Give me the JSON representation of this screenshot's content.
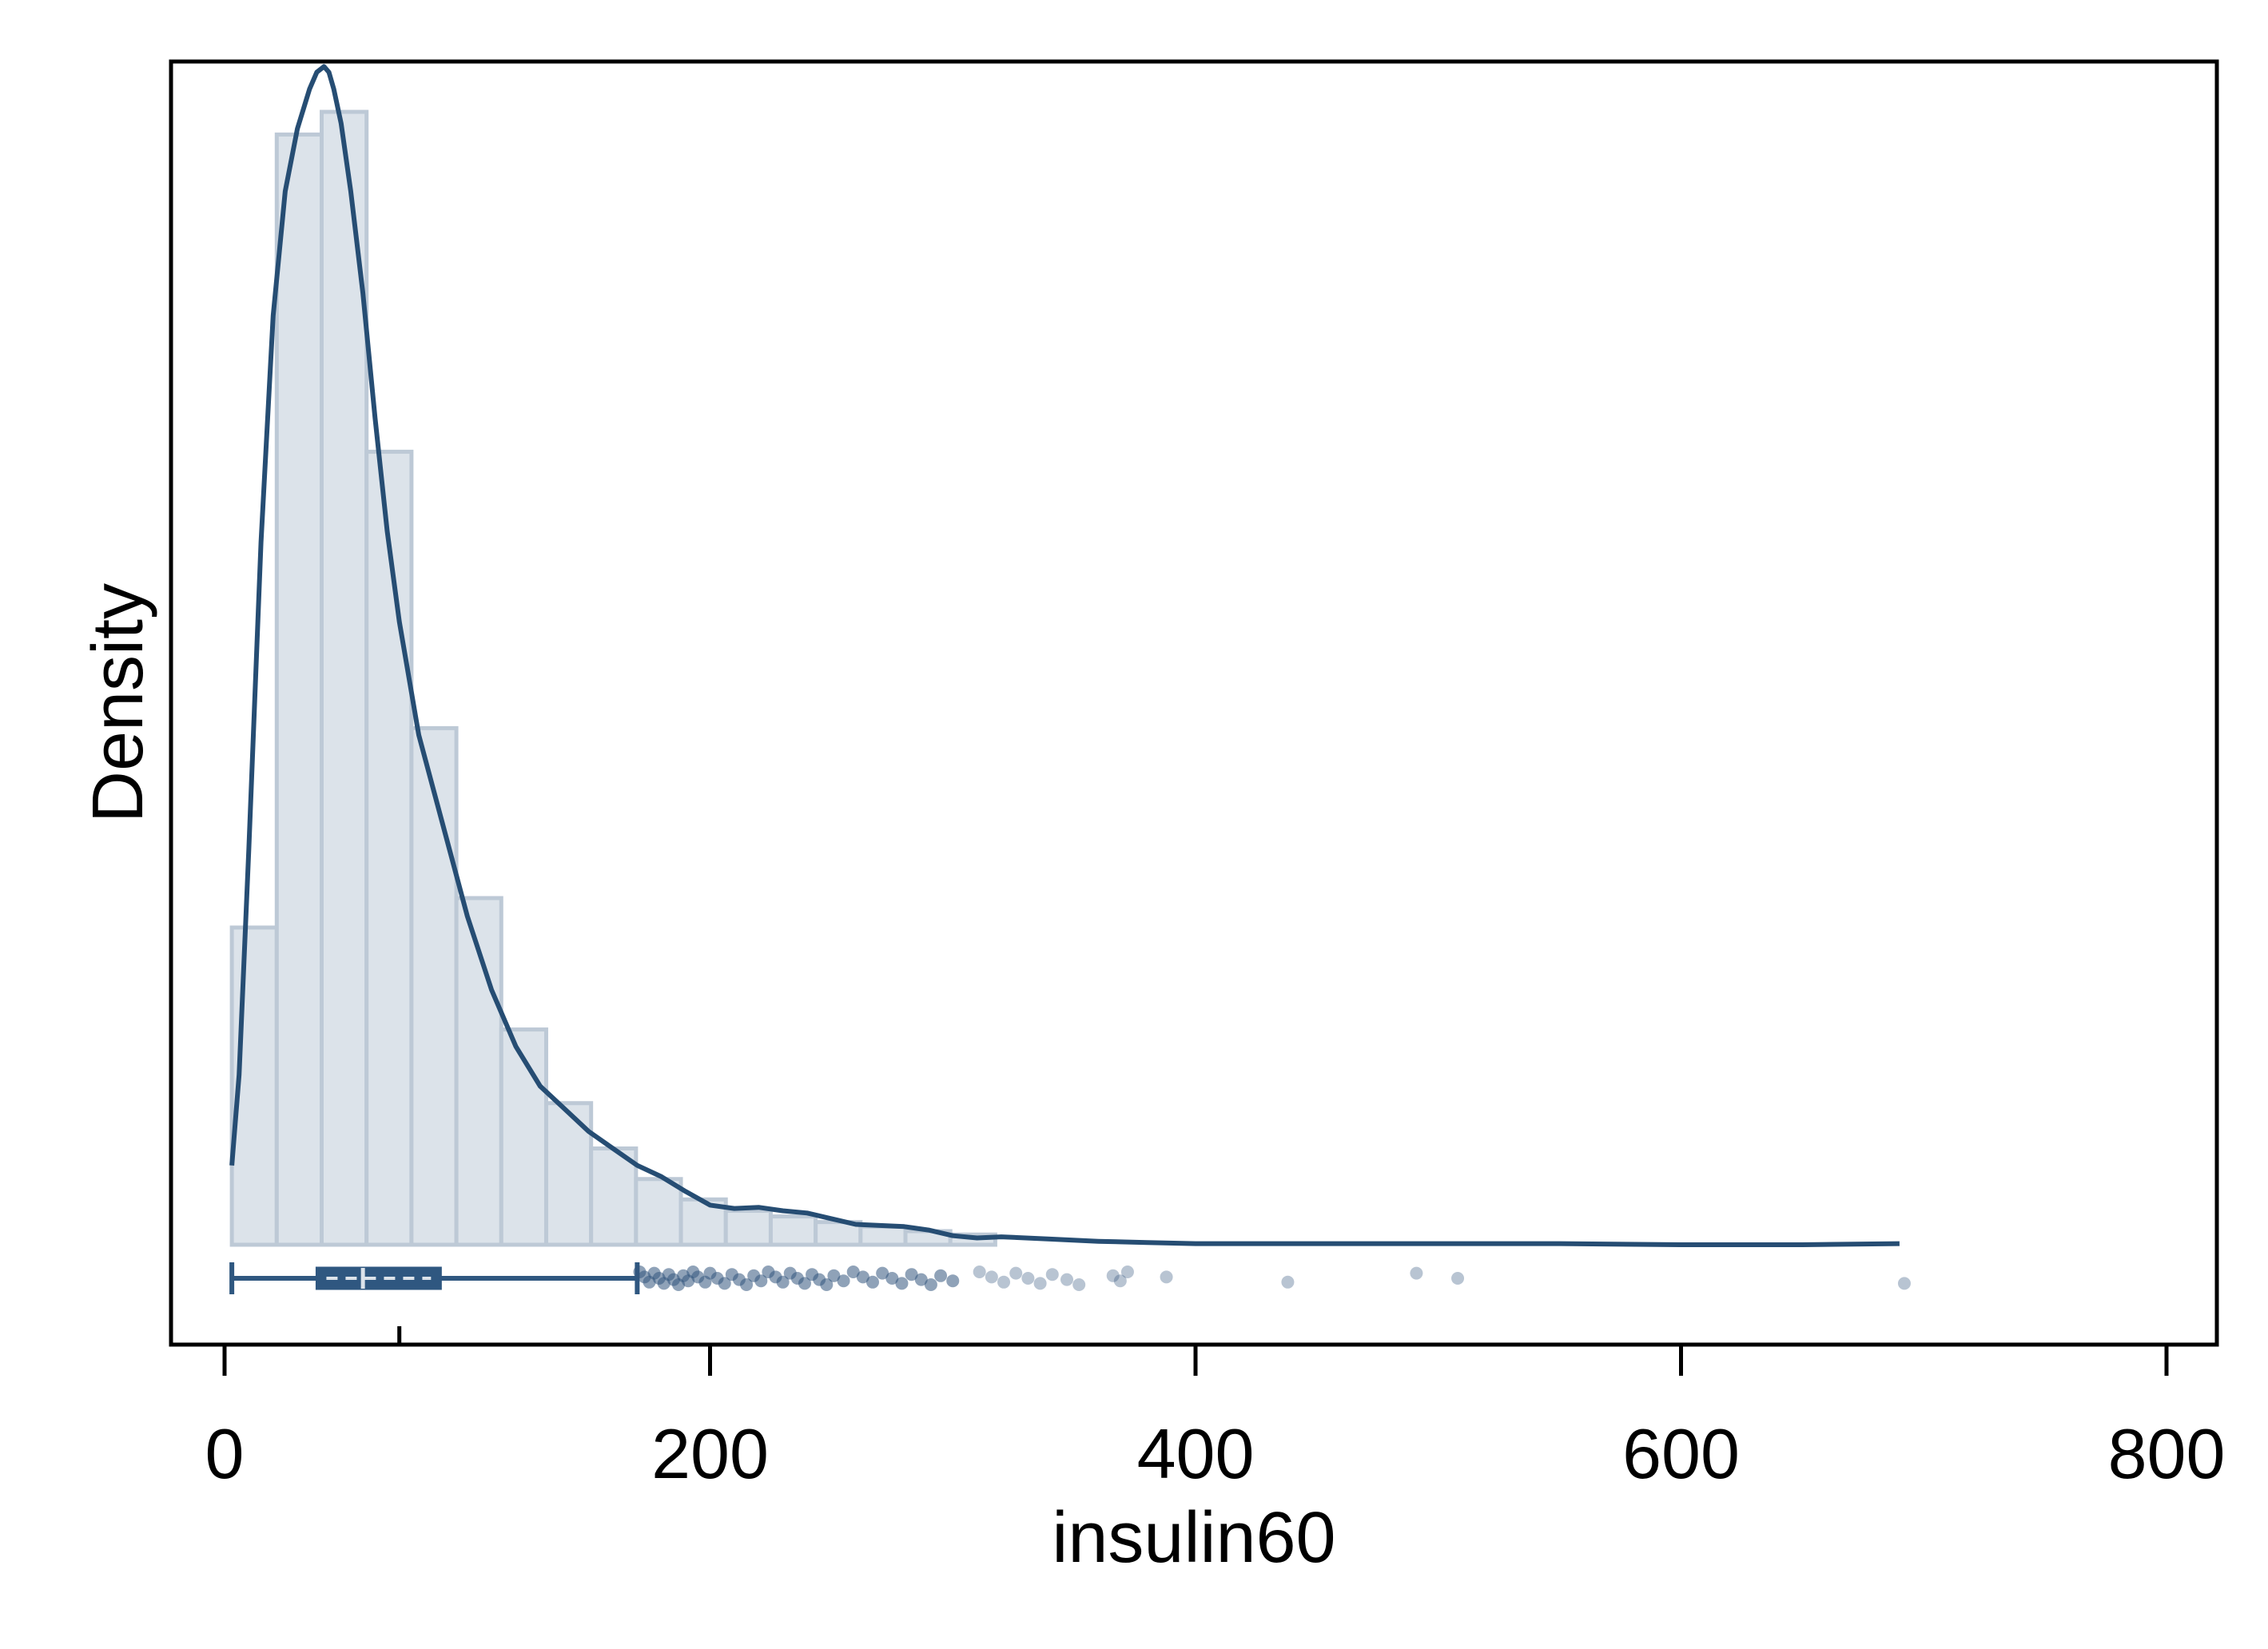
{
  "chart_data": {
    "type": "histogram",
    "title": "",
    "xlabel": "insulin60",
    "ylabel": "Density",
    "xlim": [
      -10,
      820
    ],
    "ylim": [
      0,
      1.05
    ],
    "x_ticks": [
      0,
      200,
      400,
      600,
      800
    ],
    "x_tick_labels": [
      "0",
      "200",
      "400",
      "600",
      "800"
    ],
    "grid": false,
    "legend": "none",
    "colors": {
      "bar_fill": "#dce3ea",
      "bar_stroke": "#bdc9d6",
      "line": "#264d73",
      "box": "#2f5780",
      "points": "#33567d"
    },
    "histogram": {
      "bin_width": 18.5,
      "bin_start": 3,
      "relative_heights": [
        0.28,
        0.98,
        1.0,
        0.7,
        0.456,
        0.306,
        0.19,
        0.125,
        0.085,
        0.058,
        0.04,
        0.03,
        0.025,
        0.02,
        0.016,
        0.012,
        0.009
      ]
    },
    "density_curve": {
      "x": [
        3,
        6,
        10,
        15,
        20,
        25,
        30,
        35,
        38,
        41,
        43,
        45,
        48,
        52,
        57,
        62,
        67,
        72,
        80,
        90,
        100,
        110,
        120,
        130,
        140,
        150,
        160,
        170,
        180,
        190,
        200,
        210,
        220,
        230,
        240,
        250,
        260,
        270,
        280,
        290,
        300,
        310,
        320,
        340,
        360,
        380,
        400,
        450,
        500,
        550,
        600,
        650,
        690
      ],
      "y": [
        0.07,
        0.15,
        0.35,
        0.62,
        0.82,
        0.93,
        0.985,
        1.02,
        1.035,
        1.04,
        1.035,
        1.02,
        0.99,
        0.93,
        0.84,
        0.73,
        0.63,
        0.55,
        0.45,
        0.37,
        0.29,
        0.225,
        0.175,
        0.14,
        0.12,
        0.1,
        0.085,
        0.07,
        0.06,
        0.047,
        0.035,
        0.032,
        0.033,
        0.03,
        0.028,
        0.023,
        0.018,
        0.017,
        0.016,
        0.013,
        0.008,
        0.006,
        0.007,
        0.005,
        0.003,
        0.002,
        0.001,
        0.001,
        0.001,
        0.001,
        0.0,
        0.0,
        0.001
      ]
    },
    "boxplot": {
      "whisker_low": 3,
      "q1": 38,
      "median": 57,
      "mean": 72,
      "q3": 89,
      "whisker_high": 170
    },
    "outliers": [
      171,
      173,
      175,
      177,
      179,
      181,
      183,
      185,
      187,
      189,
      191,
      193,
      195,
      198,
      200,
      203,
      206,
      209,
      212,
      215,
      218,
      221,
      224,
      227,
      230,
      233,
      236,
      239,
      242,
      245,
      248,
      251,
      255,
      259,
      263,
      267,
      271,
      275,
      279,
      283,
      287,
      291,
      295,
      300,
      311,
      316,
      321,
      326,
      331,
      336,
      341,
      347,
      352,
      366,
      369,
      372,
      388,
      438,
      491,
      508,
      692
    ]
  }
}
